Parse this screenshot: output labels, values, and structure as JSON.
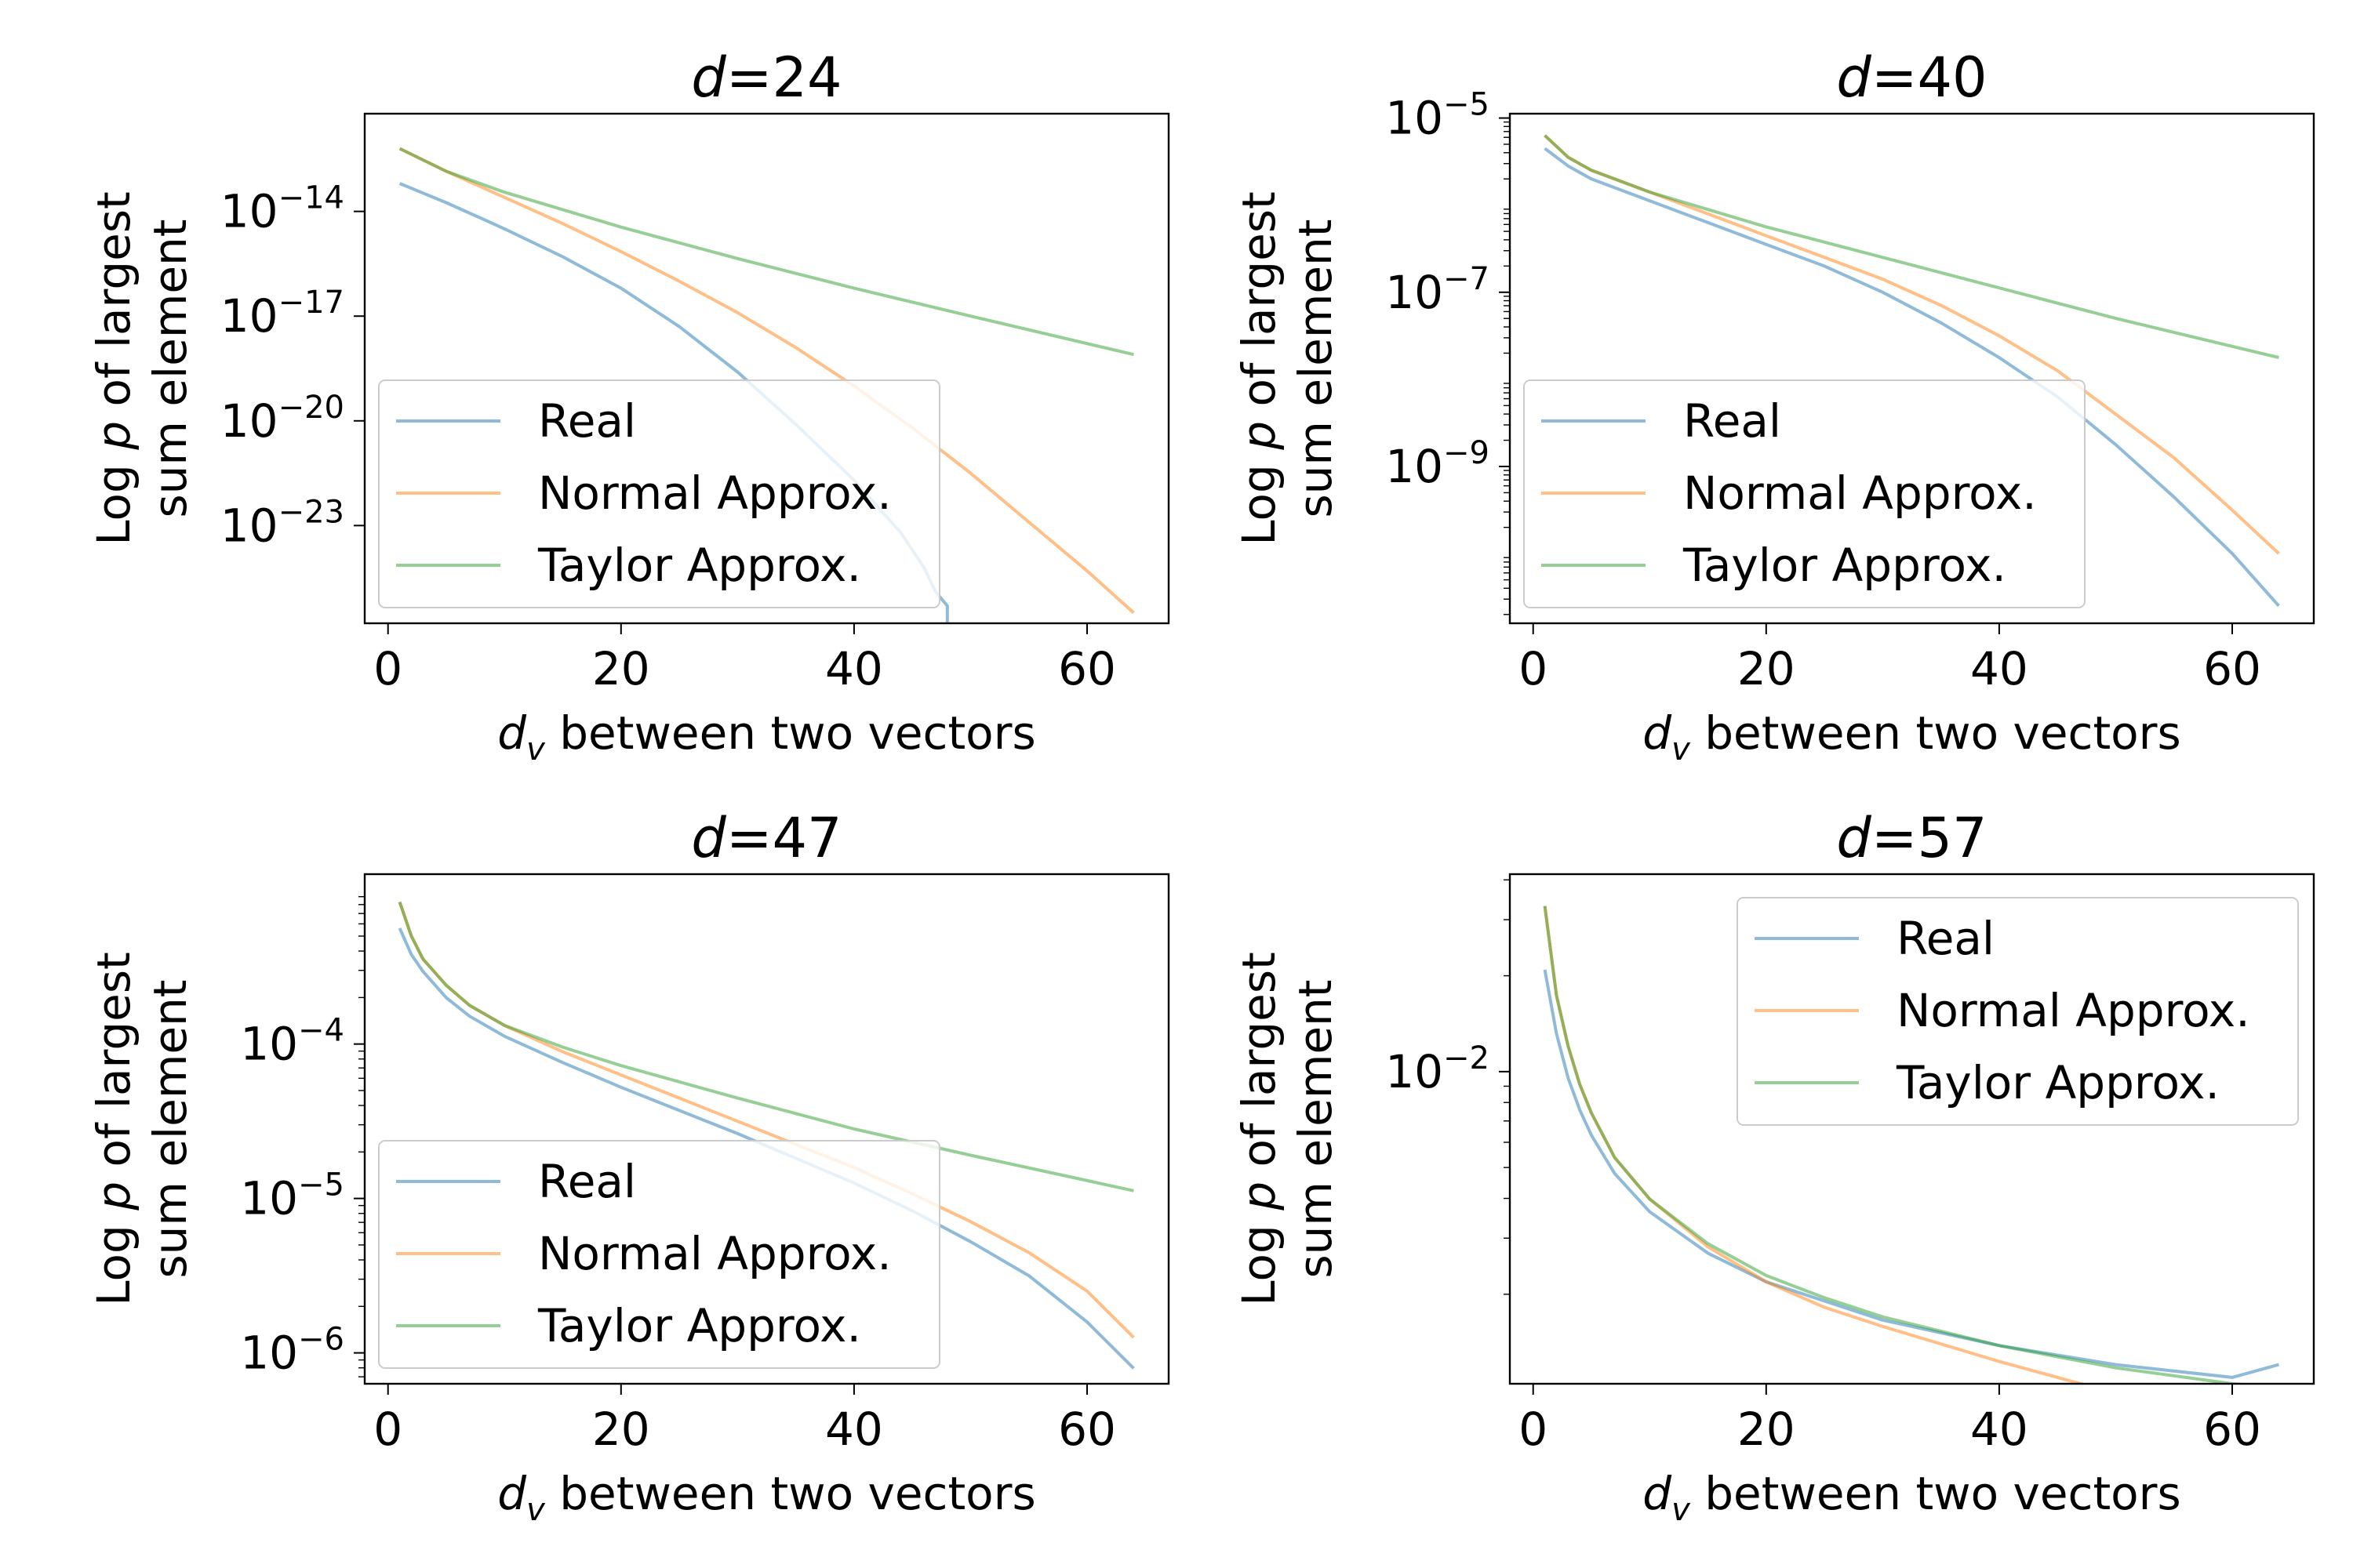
{
  "colors": {
    "real": "#1f77b4",
    "normal": "#ff7f0e",
    "taylor": "#2ca02c",
    "line_alpha": 0.5
  },
  "chart_data": [
    {
      "type": "line",
      "title_prefix": "d",
      "title_value": "=24",
      "xlabel_var": "d",
      "xlabel_sub": "v",
      "xlabel_rest": " between two vectors",
      "ylabel_line1_pre": "Log ",
      "ylabel_line1_var": "p",
      "ylabel_line1_post": " of largest",
      "ylabel_line2": "sum element",
      "yscale": "log",
      "xlim": [
        -2,
        67
      ],
      "ylim_exp": [
        -25.8,
        -11.2
      ],
      "xticks": [
        0,
        20,
        40,
        60
      ],
      "yticks_exp": [
        -14,
        -17,
        -20,
        -23
      ],
      "legend_loc": "lower-left",
      "series": [
        {
          "name": "Real",
          "key": "real",
          "x": [
            1,
            5,
            10,
            15,
            20,
            25,
            30,
            35,
            40,
            44,
            46,
            47,
            48,
            48
          ],
          "y_log10": [
            -13.2,
            -13.75,
            -14.5,
            -15.3,
            -16.2,
            -17.3,
            -18.6,
            -20.1,
            -21.7,
            -23.2,
            -24.2,
            -24.9,
            -25.3,
            -25.8
          ]
        },
        {
          "name": "Normal Approx.",
          "key": "normal",
          "x": [
            1,
            5,
            10,
            15,
            20,
            25,
            30,
            35,
            40,
            45,
            50,
            55,
            60,
            64
          ],
          "y_log10": [
            -12.2,
            -12.85,
            -13.6,
            -14.35,
            -15.15,
            -16.0,
            -16.9,
            -17.9,
            -19.0,
            -20.2,
            -21.5,
            -22.9,
            -24.3,
            -25.5
          ]
        },
        {
          "name": "Taylor Approx.",
          "key": "taylor",
          "x": [
            1,
            5,
            10,
            15,
            20,
            30,
            40,
            50,
            64
          ],
          "y_log10": [
            -12.2,
            -12.85,
            -13.45,
            -13.95,
            -14.45,
            -15.35,
            -16.2,
            -17.0,
            -18.1
          ]
        }
      ]
    },
    {
      "type": "line",
      "title_prefix": "d",
      "title_value": "=40",
      "xlabel_var": "d",
      "xlabel_sub": "v",
      "xlabel_rest": " between two vectors",
      "ylabel_line1_pre": "Log ",
      "ylabel_line1_var": "p",
      "ylabel_line1_post": " of largest",
      "ylabel_line2": "sum element",
      "yscale": "log",
      "xlim": [
        -2,
        67
      ],
      "ylim_exp": [
        -10.8,
        -4.95
      ],
      "xticks": [
        0,
        20,
        40,
        60
      ],
      "yticks_exp": [
        -5,
        -7,
        -9
      ],
      "legend_loc": "lower-left",
      "series": [
        {
          "name": "Real",
          "key": "real",
          "x": [
            1,
            3,
            5,
            10,
            15,
            20,
            25,
            30,
            35,
            40,
            45,
            50,
            55,
            60,
            64
          ],
          "y_log10": [
            -5.35,
            -5.55,
            -5.7,
            -5.95,
            -6.2,
            -6.45,
            -6.7,
            -7.0,
            -7.35,
            -7.75,
            -8.2,
            -8.75,
            -9.35,
            -10.0,
            -10.6
          ]
        },
        {
          "name": "Normal Approx.",
          "key": "normal",
          "x": [
            1,
            3,
            5,
            10,
            15,
            20,
            25,
            30,
            35,
            40,
            45,
            50,
            55,
            60,
            64
          ],
          "y_log10": [
            -5.2,
            -5.45,
            -5.6,
            -5.85,
            -6.1,
            -6.35,
            -6.6,
            -6.85,
            -7.15,
            -7.5,
            -7.9,
            -8.4,
            -8.9,
            -9.5,
            -10.0
          ]
        },
        {
          "name": "Taylor Approx.",
          "key": "taylor",
          "x": [
            1,
            3,
            5,
            10,
            15,
            20,
            30,
            40,
            50,
            64
          ],
          "y_log10": [
            -5.2,
            -5.45,
            -5.6,
            -5.85,
            -6.05,
            -6.25,
            -6.6,
            -6.95,
            -7.3,
            -7.75
          ]
        }
      ]
    },
    {
      "type": "line",
      "title_prefix": "d",
      "title_value": "=47",
      "xlabel_var": "d",
      "xlabel_sub": "v",
      "xlabel_rest": " between two vectors",
      "ylabel_line1_pre": "Log ",
      "ylabel_line1_var": "p",
      "ylabel_line1_post": " of largest",
      "ylabel_line2": "sum element",
      "yscale": "log",
      "xlim": [
        -2,
        67
      ],
      "ylim_exp": [
        -6.2,
        -2.9
      ],
      "xticks": [
        0,
        20,
        40,
        60
      ],
      "yticks_exp": [
        -4,
        -5,
        -6
      ],
      "legend_loc": "lower-left",
      "series": [
        {
          "name": "Real",
          "key": "real",
          "x": [
            1,
            2,
            3,
            5,
            7,
            10,
            15,
            20,
            25,
            30,
            35,
            40,
            45,
            50,
            55,
            60,
            64
          ],
          "y_log10": [
            -3.25,
            -3.42,
            -3.53,
            -3.7,
            -3.82,
            -3.95,
            -4.12,
            -4.28,
            -4.43,
            -4.58,
            -4.74,
            -4.9,
            -5.08,
            -5.28,
            -5.5,
            -5.8,
            -6.1
          ]
        },
        {
          "name": "Normal Approx.",
          "key": "normal",
          "x": [
            1,
            2,
            3,
            5,
            7,
            10,
            15,
            20,
            25,
            30,
            35,
            40,
            45,
            50,
            55,
            60,
            64
          ],
          "y_log10": [
            -3.08,
            -3.3,
            -3.45,
            -3.62,
            -3.75,
            -3.88,
            -4.05,
            -4.2,
            -4.35,
            -4.5,
            -4.65,
            -4.8,
            -4.97,
            -5.15,
            -5.35,
            -5.6,
            -5.9
          ]
        },
        {
          "name": "Taylor Approx.",
          "key": "taylor",
          "x": [
            1,
            2,
            3,
            5,
            7,
            10,
            15,
            20,
            30,
            40,
            50,
            64
          ],
          "y_log10": [
            -3.08,
            -3.3,
            -3.45,
            -3.62,
            -3.75,
            -3.88,
            -4.02,
            -4.14,
            -4.35,
            -4.55,
            -4.72,
            -4.95
          ]
        }
      ]
    },
    {
      "type": "line",
      "title_prefix": "d",
      "title_value": "=57",
      "xlabel_var": "d",
      "xlabel_sub": "v",
      "xlabel_rest": " between two vectors",
      "ylabel_line1_pre": "Log ",
      "ylabel_line1_var": "p",
      "ylabel_line1_post": " of largest",
      "ylabel_line2": "sum element",
      "yscale": "log",
      "xlim": [
        -2,
        67
      ],
      "ylim_exp": [
        -2.98,
        -1.38
      ],
      "xticks": [
        0,
        20,
        40,
        60
      ],
      "yticks_exp": [
        -2
      ],
      "legend_loc": "upper-right",
      "series": [
        {
          "name": "Real",
          "key": "real",
          "x": [
            1,
            2,
            3,
            4,
            5,
            7,
            10,
            15,
            20,
            30,
            40,
            50,
            60,
            64
          ],
          "y_log10": [
            -1.68,
            -1.88,
            -2.02,
            -2.12,
            -2.2,
            -2.32,
            -2.44,
            -2.57,
            -2.66,
            -2.78,
            -2.86,
            -2.92,
            -2.96,
            -2.92
          ]
        },
        {
          "name": "Normal Approx.",
          "key": "normal",
          "x": [
            1,
            2,
            3,
            4,
            5,
            7,
            10,
            15,
            20,
            25,
            30,
            40,
            50,
            60,
            64
          ],
          "y_log10": [
            -1.48,
            -1.76,
            -1.92,
            -2.04,
            -2.13,
            -2.27,
            -2.4,
            -2.55,
            -2.66,
            -2.74,
            -2.8,
            -2.91,
            -3.01,
            -3.11,
            -3.15
          ]
        },
        {
          "name": "Taylor Approx.",
          "key": "taylor",
          "x": [
            1,
            2,
            3,
            4,
            5,
            7,
            10,
            15,
            20,
            25,
            30,
            40,
            50,
            60,
            64
          ],
          "y_log10": [
            -1.48,
            -1.76,
            -1.92,
            -2.04,
            -2.13,
            -2.27,
            -2.4,
            -2.54,
            -2.64,
            -2.71,
            -2.77,
            -2.86,
            -2.93,
            -2.98,
            -2.99
          ]
        }
      ]
    }
  ]
}
